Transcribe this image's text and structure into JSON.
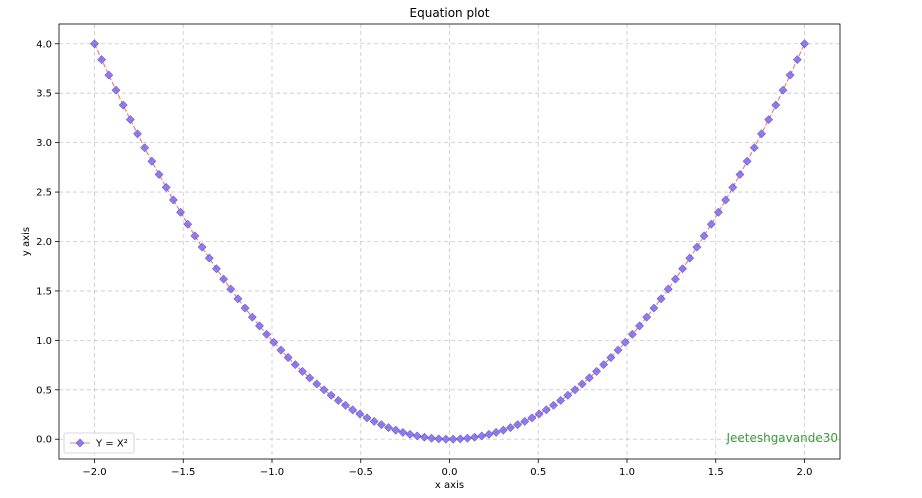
{
  "chart_data": {
    "type": "line",
    "title": "Equation plot",
    "xlabel": "x axis",
    "ylabel": "y axis",
    "xlim": [
      -2.2,
      2.2
    ],
    "ylim": [
      -0.2,
      4.2
    ],
    "x_ticks": [
      -2.0,
      -1.5,
      -1.0,
      -0.5,
      0.0,
      0.5,
      1.0,
      1.5,
      2.0
    ],
    "x_tick_labels": [
      "−2.0",
      "−1.5",
      "−1.0",
      "−0.5",
      "0.0",
      "0.5",
      "1.0",
      "1.5",
      "2.0"
    ],
    "y_ticks": [
      0.0,
      0.5,
      1.0,
      1.5,
      2.0,
      2.5,
      3.0,
      3.5,
      4.0
    ],
    "y_tick_labels": [
      "0.0",
      "0.5",
      "1.0",
      "1.5",
      "2.0",
      "2.5",
      "3.0",
      "3.5",
      "4.0"
    ],
    "grid": true,
    "legend_position": "lower-left",
    "series": [
      {
        "name": "Y = X²",
        "equation": "y = x^2",
        "x_range": [
          -2.0,
          2.0
        ],
        "num_points": 100,
        "line_color": "#f08080",
        "marker": "diamond",
        "marker_face_color": "#7b68ee",
        "marker_edge_color": "#6a5acd"
      }
    ],
    "annotations": [
      {
        "text": "Jeeteshgavande30",
        "color": "#3c9a3c"
      }
    ]
  }
}
